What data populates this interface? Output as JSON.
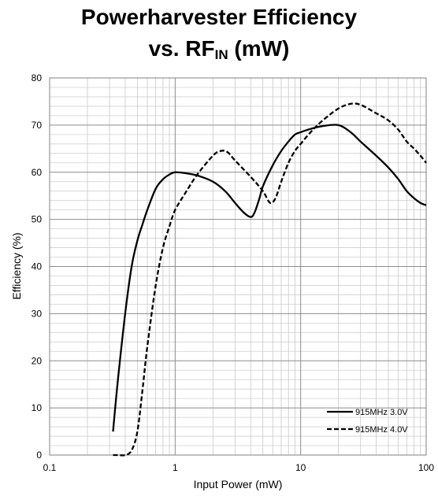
{
  "title": {
    "line1": "Powerharvester Efficiency",
    "line2_prefix": "vs. RF",
    "line2_sub": "IN",
    "line2_suffix": " (mW)"
  },
  "chart_data": {
    "type": "line",
    "xlabel": "Input Power (mW)",
    "ylabel": "Efficiency (%)",
    "xscale": "log",
    "xlim": [
      0.1,
      100
    ],
    "ylim": [
      0,
      80
    ],
    "xticks": [
      0.1,
      1,
      10,
      100
    ],
    "xtick_labels": [
      "0.1",
      "1",
      "10",
      "100"
    ],
    "yticks": [
      0,
      10,
      20,
      30,
      40,
      50,
      60,
      70,
      80
    ],
    "grid": true,
    "legend": "bottom-right",
    "series": [
      {
        "name": "915MHz 3.0V",
        "style": "solid",
        "color": "#000000",
        "x": [
          0.32,
          0.35,
          0.4,
          0.45,
          0.5,
          0.55,
          0.6,
          0.7,
          0.8,
          0.9,
          1.0,
          1.2,
          1.5,
          2.0,
          2.5,
          3.0,
          3.5,
          4.0,
          4.3,
          4.7,
          5.0,
          6.0,
          7.0,
          8.0,
          9.0,
          10.0,
          12.0,
          15.0,
          20.0,
          25.0,
          30.0,
          40.0,
          50.0,
          60.0,
          70.0,
          80.0,
          90.0,
          100.0
        ],
        "y": [
          5,
          16,
          30,
          40,
          45.5,
          49,
          52,
          56.5,
          58.5,
          59.5,
          60,
          59.8,
          59.3,
          58,
          56,
          53.5,
          51.5,
          50.5,
          51.5,
          54.5,
          57,
          61.5,
          64.5,
          66.5,
          68,
          68.5,
          69.2,
          69.8,
          70,
          68.5,
          66.5,
          63.5,
          61,
          58.5,
          56,
          54.5,
          53.5,
          53
        ]
      },
      {
        "name": "915MHz 4.0V",
        "style": "dashed",
        "color": "#000000",
        "x": [
          0.32,
          0.35,
          0.4,
          0.45,
          0.5,
          0.55,
          0.6,
          0.7,
          0.8,
          0.9,
          1.0,
          1.2,
          1.5,
          2.0,
          2.3,
          2.6,
          3.0,
          4.0,
          5.0,
          5.7,
          6.3,
          7.0,
          8.0,
          9.0,
          10.0,
          12.0,
          15.0,
          20.0,
          25.0,
          30.0,
          40.0,
          50.0,
          60.0,
          70.0,
          80.0,
          90.0,
          100.0
        ],
        "y": [
          0,
          0,
          0,
          1,
          5,
          14,
          23,
          36,
          44,
          48.5,
          52,
          55.5,
          59.5,
          63.5,
          64.5,
          64.3,
          62.5,
          59,
          56,
          53.5,
          54.5,
          58,
          62,
          64.5,
          66,
          68.5,
          71,
          73.5,
          74.5,
          74.3,
          72.5,
          71,
          69,
          66.5,
          65,
          63.5,
          62
        ]
      }
    ]
  }
}
